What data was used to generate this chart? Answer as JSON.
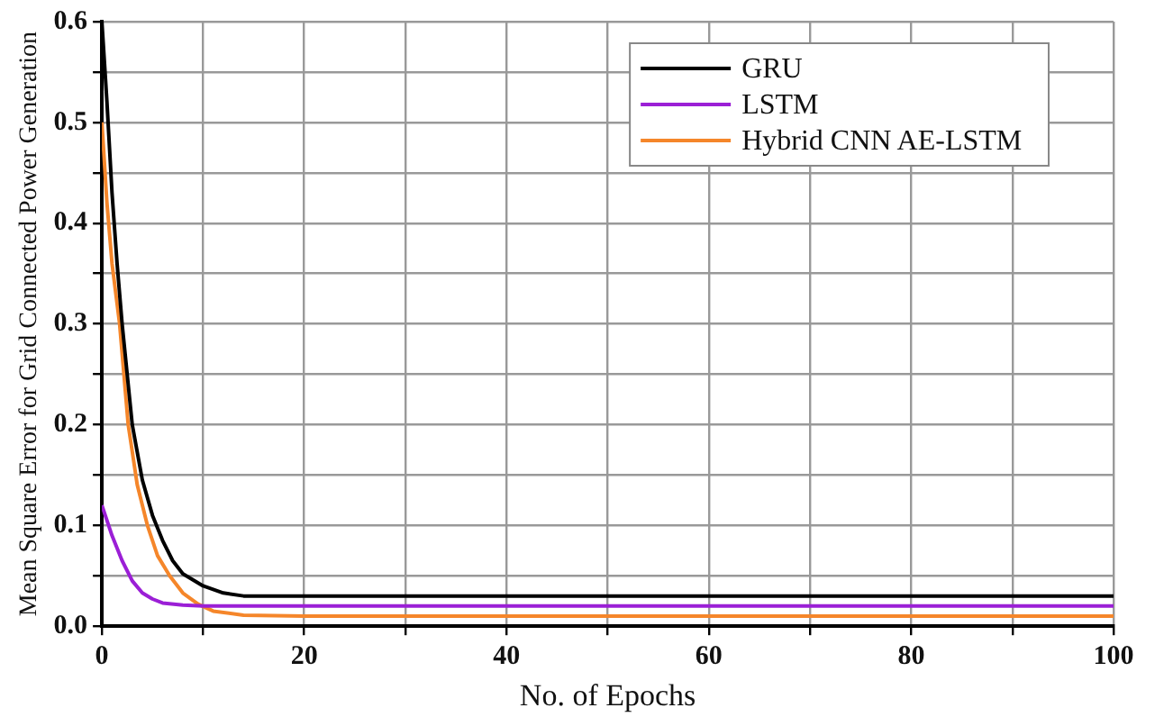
{
  "chart_data": {
    "type": "line",
    "xlabel": "No. of Epochs",
    "ylabel": "Mean Square Error for Grid Connected Power Generation",
    "xlim": [
      0,
      100
    ],
    "xticks": [
      0,
      {
        "value": 10,
        "label": null
      },
      20,
      {
        "value": 30,
        "label": null
      },
      40,
      {
        "value": 50,
        "label": null
      },
      60,
      {
        "value": 70,
        "label": null
      },
      80,
      {
        "value": 90,
        "label": null
      },
      100
    ],
    "ylim": [
      0,
      0.6
    ],
    "yticks": [
      {
        "value": 0,
        "label": "0.0"
      },
      {
        "value": 0.05,
        "label": null
      },
      0.1,
      {
        "value": 0.15,
        "label": null
      },
      0.2,
      {
        "value": 0.25,
        "label": null
      },
      0.3,
      {
        "value": 0.35,
        "label": null
      },
      0.4,
      {
        "value": 0.45,
        "label": null
      },
      0.5,
      {
        "value": 0.55,
        "label": null
      },
      0.6
    ],
    "grid": true,
    "legend": "top right",
    "marker": "none",
    "line_style": "solid",
    "series": [
      {
        "name": "GRU",
        "color": "#000000",
        "x": [
          0,
          0.5,
          1,
          1.5,
          2,
          3,
          4,
          5,
          6,
          7,
          8,
          10,
          12,
          14,
          100
        ],
        "values": [
          0.6,
          0.52,
          0.43,
          0.36,
          0.3,
          0.2,
          0.145,
          0.11,
          0.085,
          0.065,
          0.052,
          0.04,
          0.033,
          0.03,
          0.03
        ]
      },
      {
        "name": "LSTM",
        "color": "#9b1fd6",
        "x": [
          0,
          1,
          2,
          3,
          4,
          5,
          6,
          8,
          10,
          100
        ],
        "values": [
          0.12,
          0.09,
          0.065,
          0.045,
          0.033,
          0.027,
          0.023,
          0.021,
          0.02,
          0.02
        ]
      },
      {
        "name": "Hybrid CNN AE-LSTM",
        "color": "#f5862a",
        "x": [
          0,
          0.5,
          1,
          1.75,
          2.6,
          3.5,
          4.5,
          5.5,
          6.7,
          8,
          9.5,
          11,
          14,
          20,
          100
        ],
        "values": [
          0.5,
          0.42,
          0.36,
          0.3,
          0.2,
          0.14,
          0.1,
          0.07,
          0.05,
          0.033,
          0.022,
          0.015,
          0.011,
          0.01,
          0.01
        ]
      }
    ]
  }
}
